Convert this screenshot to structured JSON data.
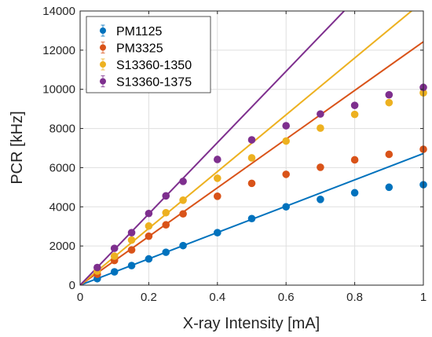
{
  "chart_data": {
    "type": "scatter",
    "xlabel": "X-ray Intensity [mA]",
    "ylabel": "PCR [kHz]",
    "xlim": [
      0,
      1
    ],
    "ylim": [
      0,
      14000
    ],
    "xticks": [
      0,
      0.2,
      0.4,
      0.6,
      0.8,
      1
    ],
    "xtick_labels": [
      "0",
      "0.2",
      "0.4",
      "0.6",
      "0.8",
      "1"
    ],
    "yticks": [
      0,
      2000,
      4000,
      6000,
      8000,
      10000,
      12000,
      14000
    ],
    "ytick_labels": [
      "0",
      "2000",
      "4000",
      "6000",
      "8000",
      "10000",
      "12000",
      "14000"
    ],
    "grid": true,
    "legend_position": "top-left",
    "x": [
      0.05,
      0.1,
      0.15,
      0.2,
      0.25,
      0.3,
      0.4,
      0.5,
      0.6,
      0.7,
      0.8,
      0.9,
      1.0
    ],
    "series": [
      {
        "name": "PM1125",
        "color": "#0072BD",
        "values": [
          330,
          680,
          1000,
          1340,
          1680,
          2020,
          2680,
          3400,
          4000,
          4380,
          4720,
          5000,
          5130
        ],
        "fit_slope": 6720
      },
      {
        "name": "PM3325",
        "color": "#D95319",
        "values": [
          560,
          1260,
          1800,
          2500,
          3080,
          3640,
          4540,
          5200,
          5660,
          6020,
          6400,
          6680,
          6940
        ],
        "fit_slope": 12430
      },
      {
        "name": "S13360-1350",
        "color": "#EDB120",
        "values": [
          720,
          1480,
          2300,
          3020,
          3700,
          4340,
          5460,
          6500,
          7360,
          8020,
          8720,
          9320,
          9820
        ],
        "fit_slope": 14500
      },
      {
        "name": "S13360-1375",
        "color": "#7E2F8E",
        "values": [
          900,
          1880,
          2680,
          3660,
          4560,
          5300,
          6420,
          7420,
          8140,
          8740,
          9180,
          9720,
          10100
        ],
        "fit_slope": 18200
      }
    ]
  }
}
